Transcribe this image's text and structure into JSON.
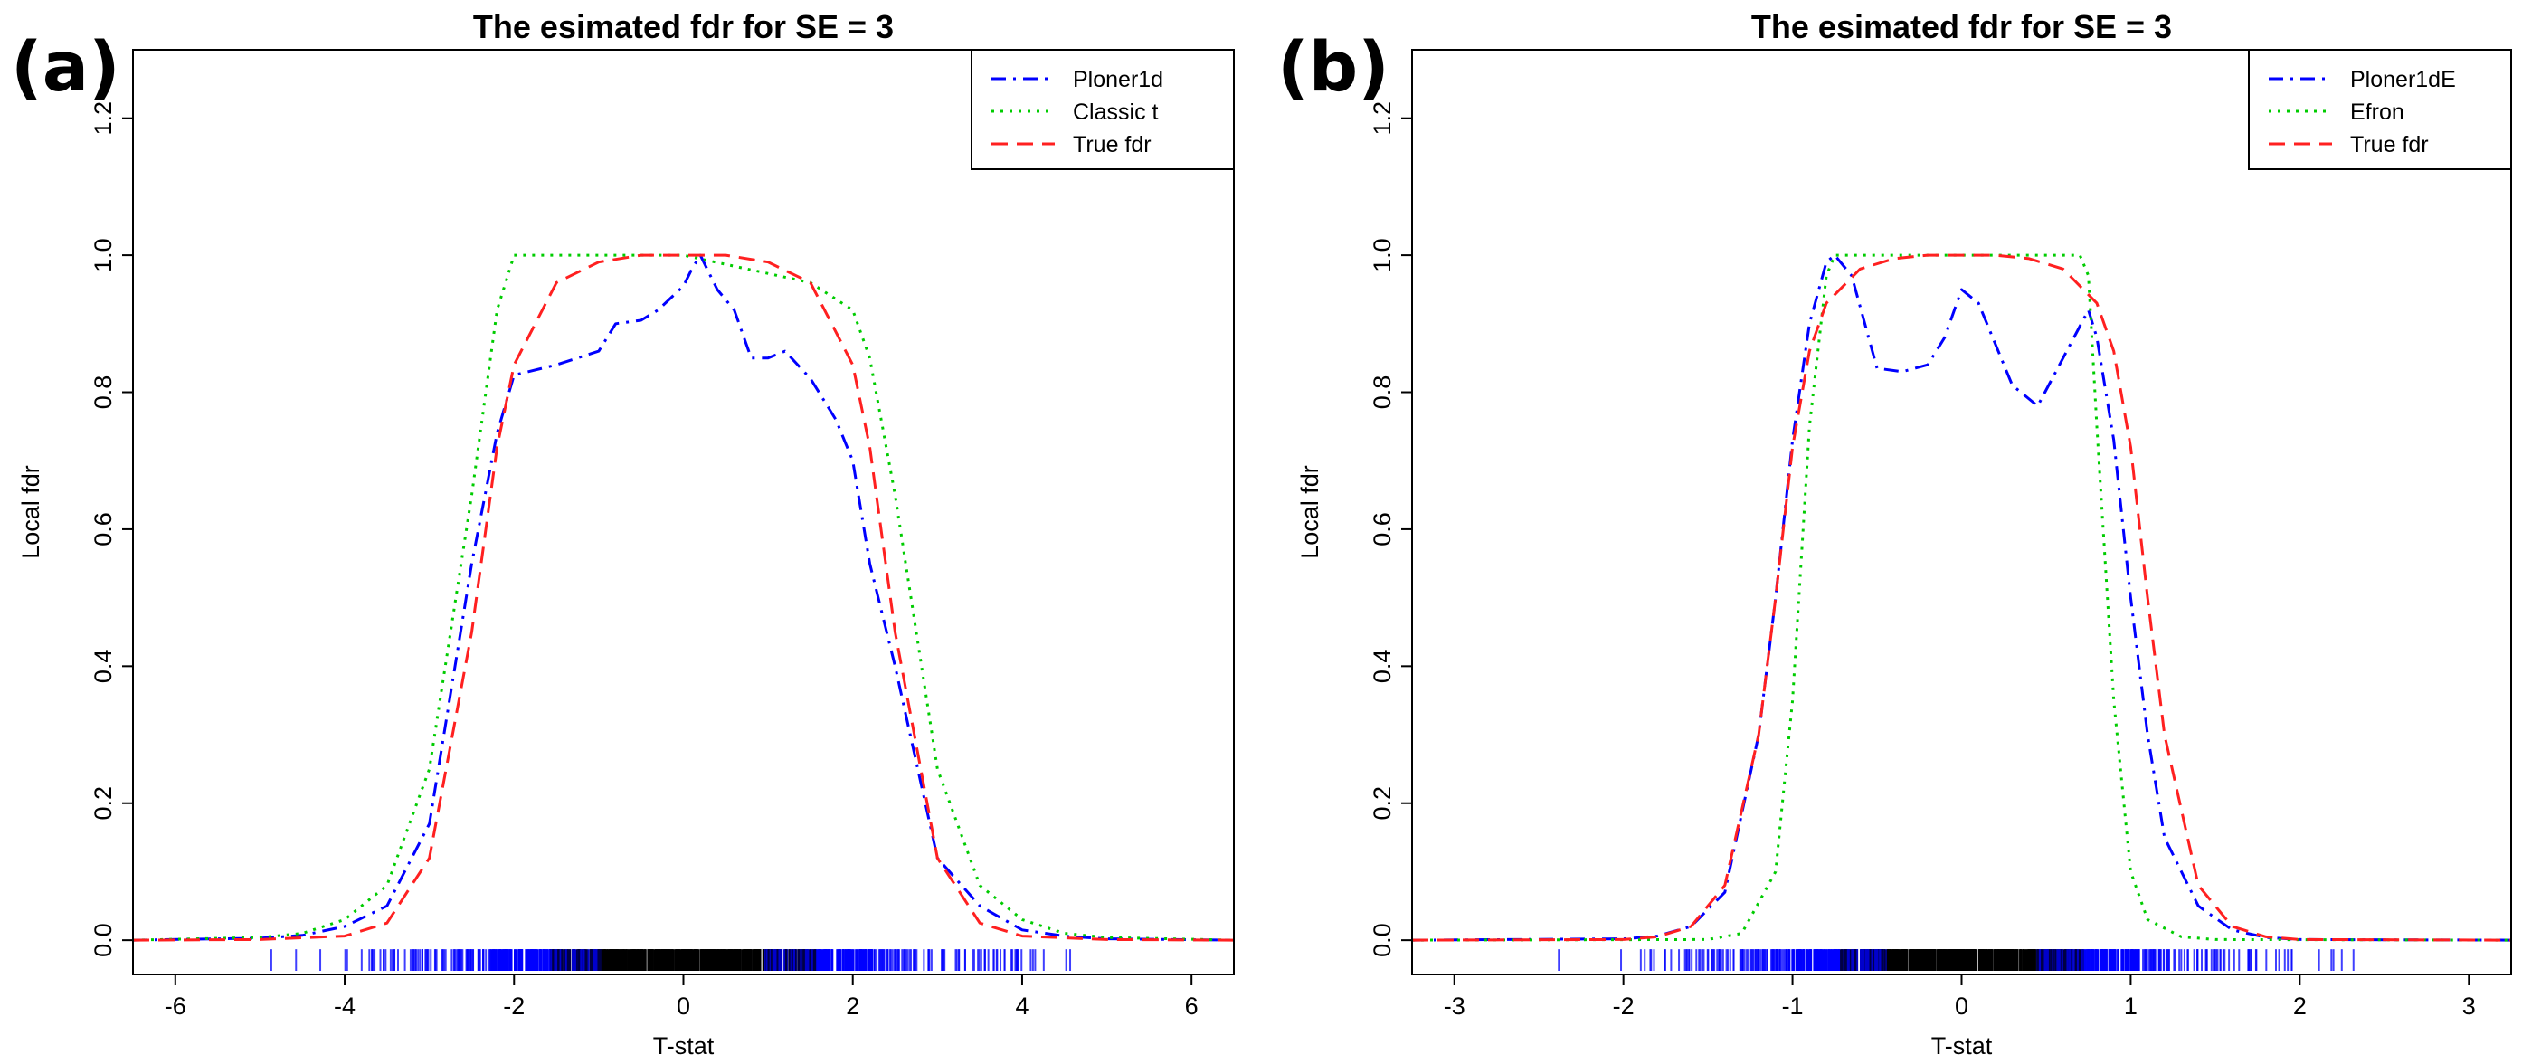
{
  "chart_data": [
    {
      "type": "line",
      "panel_label": "(a)",
      "title": "The esimated fdr for SE =  3",
      "xlabel": "T-stat",
      "ylabel": "Local fdr",
      "xlim": [
        -6.5,
        6.5
      ],
      "ylim": [
        -0.05,
        1.3
      ],
      "xticks": [
        -6,
        -4,
        -2,
        0,
        2,
        4,
        6
      ],
      "xtick_labels": [
        "-6",
        "-4",
        "-2",
        "0",
        "2",
        "4",
        "6"
      ],
      "yticks": [
        0.0,
        0.2,
        0.4,
        0.6,
        0.8,
        1.0,
        1.2
      ],
      "ytick_labels": [
        "0.0",
        "0.2",
        "0.4",
        "0.6",
        "0.8",
        "1.0",
        "1.2"
      ],
      "legend_position": "top-right",
      "series": [
        {
          "name": "Ploner1d",
          "color": "#0000ff",
          "style": "dotdash",
          "x": [
            -6.5,
            -5,
            -4.5,
            -4,
            -3.5,
            -3,
            -2.5,
            -2.2,
            -2,
            -1.5,
            -1,
            -0.8,
            -0.5,
            -0.3,
            0,
            0.1,
            0.2,
            0.4,
            0.6,
            0.8,
            1,
            1.2,
            1.5,
            1.8,
            2,
            2.2,
            2.5,
            3,
            3.5,
            4,
            4.5,
            5,
            6.5
          ],
          "y": [
            0,
            0.003,
            0.007,
            0.02,
            0.05,
            0.17,
            0.55,
            0.74,
            0.825,
            0.84,
            0.86,
            0.9,
            0.905,
            0.92,
            0.955,
            0.98,
            1.0,
            0.95,
            0.92,
            0.85,
            0.85,
            0.86,
            0.82,
            0.76,
            0.7,
            0.55,
            0.4,
            0.12,
            0.05,
            0.015,
            0.006,
            0.002,
            0
          ]
        },
        {
          "name": "Classic t",
          "color": "#00cc00",
          "style": "dotted",
          "x": [
            -6.5,
            -5,
            -4.5,
            -4,
            -3.5,
            -3,
            -2.5,
            -2.2,
            -2,
            -1.5,
            0,
            1.5,
            2,
            2.2,
            2.5,
            3,
            3.5,
            4,
            4.5,
            5,
            6.5
          ],
          "y": [
            0,
            0.004,
            0.01,
            0.03,
            0.08,
            0.25,
            0.65,
            0.92,
            1.0,
            1.0,
            1.0,
            0.96,
            0.92,
            0.85,
            0.65,
            0.25,
            0.08,
            0.03,
            0.01,
            0.004,
            0
          ]
        },
        {
          "name": "True fdr",
          "color": "#ff2020",
          "style": "dashed",
          "x": [
            -6.5,
            -5,
            -4,
            -3.5,
            -3,
            -2.5,
            -2.2,
            -2,
            -1.5,
            -1,
            -0.5,
            0,
            0.5,
            1,
            1.5,
            2,
            2.2,
            2.5,
            3,
            3.5,
            4,
            5,
            6.5
          ],
          "y": [
            0,
            0.001,
            0.006,
            0.025,
            0.12,
            0.45,
            0.72,
            0.84,
            0.96,
            0.99,
            1.0,
            1.0,
            1.0,
            0.99,
            0.96,
            0.84,
            0.72,
            0.45,
            0.12,
            0.025,
            0.006,
            0.001,
            0
          ]
        }
      ]
    },
    {
      "type": "line",
      "panel_label": "(b)",
      "title": "The esimated fdr for SE =  3",
      "xlabel": "T-stat",
      "ylabel": "Local fdr",
      "xlim": [
        -3.25,
        3.25
      ],
      "ylim": [
        -0.05,
        1.3
      ],
      "xticks": [
        -3,
        -2,
        -1,
        0,
        1,
        2,
        3
      ],
      "xtick_labels": [
        "-3",
        "-2",
        "-1",
        "0",
        "1",
        "2",
        "3"
      ],
      "yticks": [
        0.0,
        0.2,
        0.4,
        0.6,
        0.8,
        1.0,
        1.2
      ],
      "ytick_labels": [
        "0.0",
        "0.2",
        "0.4",
        "0.6",
        "0.8",
        "1.0",
        "1.2"
      ],
      "legend_position": "top-right",
      "series": [
        {
          "name": "Ploner1dE",
          "color": "#0000ff",
          "style": "dotdash",
          "x": [
            -3.25,
            -2,
            -1.8,
            -1.6,
            -1.4,
            -1.2,
            -1.1,
            -1,
            -0.9,
            -0.8,
            -0.75,
            -0.65,
            -0.5,
            -0.35,
            -0.2,
            -0.1,
            0,
            0.1,
            0.2,
            0.3,
            0.45,
            0.6,
            0.75,
            0.8,
            0.9,
            1,
            1.1,
            1.2,
            1.4,
            1.6,
            1.8,
            2,
            3.25
          ],
          "y": [
            0,
            0.002,
            0.006,
            0.02,
            0.07,
            0.3,
            0.5,
            0.73,
            0.9,
            0.99,
            1.0,
            0.97,
            0.835,
            0.83,
            0.84,
            0.88,
            0.95,
            0.93,
            0.87,
            0.81,
            0.78,
            0.85,
            0.92,
            0.88,
            0.73,
            0.5,
            0.3,
            0.15,
            0.05,
            0.015,
            0.004,
            0.001,
            0
          ]
        },
        {
          "name": "Efron",
          "color": "#00cc00",
          "style": "dotted",
          "x": [
            -3.25,
            -1.5,
            -1.3,
            -1.1,
            -1,
            -0.9,
            -0.8,
            -0.75,
            0,
            0.7,
            0.75,
            0.8,
            0.9,
            1,
            1.1,
            1.3,
            1.5,
            3.25
          ],
          "y": [
            0,
            0.001,
            0.01,
            0.1,
            0.35,
            0.75,
            0.97,
            1.0,
            1.0,
            1.0,
            0.97,
            0.75,
            0.35,
            0.1,
            0.03,
            0.005,
            0.001,
            0
          ]
        },
        {
          "name": "True fdr",
          "color": "#ff2020",
          "style": "dashed",
          "x": [
            -3.25,
            -2,
            -1.8,
            -1.6,
            -1.4,
            -1.2,
            -1.1,
            -1,
            -0.9,
            -0.8,
            -0.6,
            -0.4,
            -0.2,
            0,
            0.2,
            0.4,
            0.6,
            0.8,
            0.9,
            1,
            1.1,
            1.2,
            1.4,
            1.6,
            1.8,
            2,
            3.25
          ],
          "y": [
            0,
            0.001,
            0.005,
            0.02,
            0.08,
            0.3,
            0.5,
            0.72,
            0.86,
            0.93,
            0.98,
            0.995,
            1.0,
            1.0,
            1.0,
            0.995,
            0.98,
            0.93,
            0.86,
            0.72,
            0.5,
            0.3,
            0.08,
            0.02,
            0.005,
            0.001,
            0
          ]
        }
      ]
    }
  ]
}
